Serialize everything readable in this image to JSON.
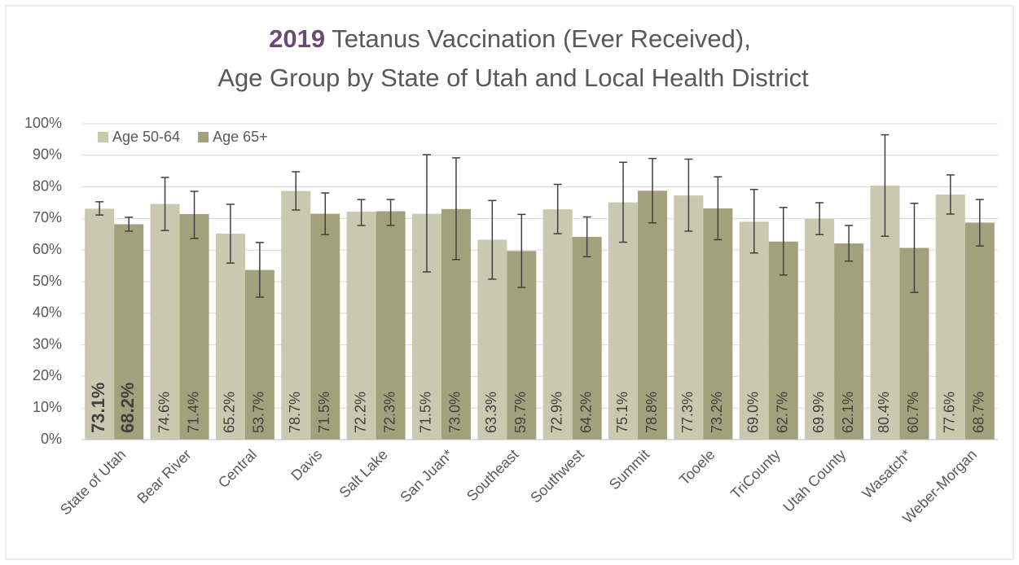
{
  "chart_data": {
    "type": "bar",
    "title_highlight": "2019",
    "title": "Tetanus Vaccination (Ever Received),",
    "subtitle": "Age Group by State of Utah and Local Health District",
    "categories": [
      "State of Utah",
      "Bear River",
      "Central",
      "Davis",
      "Salt Lake",
      "San Juan*",
      "Southeast",
      "Southwest",
      "Summit",
      "Tooele",
      "TriCounty",
      "Utah County",
      "Wasatch*",
      "Weber-Morgan"
    ],
    "series": [
      {
        "name": "Age 50-64",
        "color": "#c9c9b0",
        "values": [
          73.1,
          74.6,
          65.2,
          78.7,
          72.2,
          71.5,
          63.3,
          72.9,
          75.1,
          77.3,
          69.0,
          69.9,
          80.4,
          77.6
        ],
        "value_labels": [
          "73.1%",
          "74.6%",
          "65.2%",
          "78.7%",
          "72.2%",
          "71.5%",
          "63.3%",
          "72.9%",
          "75.1%",
          "77.3%",
          "69.0%",
          "69.9%",
          "80.4%",
          "77.6%"
        ],
        "ci_low": [
          71.1,
          66.2,
          55.9,
          72.7,
          67.8,
          53.1,
          50.8,
          65.2,
          62.5,
          66.0,
          59.1,
          64.9,
          64.4,
          71.4
        ],
        "ci_high": [
          75.3,
          83.0,
          74.5,
          84.8,
          76.0,
          90.2,
          75.7,
          80.8,
          87.8,
          88.8,
          79.2,
          75.0,
          96.5,
          83.8
        ]
      },
      {
        "name": "Age 65+",
        "color": "#a3a17c",
        "values": [
          68.2,
          71.4,
          53.7,
          71.5,
          72.3,
          73.0,
          59.7,
          64.2,
          78.8,
          73.2,
          62.7,
          62.1,
          60.7,
          68.7
        ],
        "value_labels": [
          "68.2%",
          "71.4%",
          "53.7%",
          "71.5%",
          "72.3%",
          "73.0%",
          "59.7%",
          "64.2%",
          "78.8%",
          "73.2%",
          "62.7%",
          "62.1%",
          "60.7%",
          "68.7%"
        ],
        "ci_low": [
          66.0,
          63.7,
          45.1,
          64.9,
          67.8,
          57.0,
          48.2,
          57.9,
          68.6,
          63.3,
          52.1,
          56.5,
          46.6,
          61.3
        ],
        "ci_high": [
          70.4,
          78.6,
          62.4,
          78.1,
          76.0,
          89.2,
          71.3,
          70.5,
          89.0,
          83.2,
          73.5,
          67.8,
          74.8,
          76.0
        ]
      }
    ],
    "ylim": [
      0,
      100
    ],
    "yticks": [
      {
        "value": 0,
        "label": "0%"
      },
      {
        "value": 10,
        "label": "10%"
      },
      {
        "value": 20,
        "label": "20%"
      },
      {
        "value": 30,
        "label": "30%"
      },
      {
        "value": 40,
        "label": "40%"
      },
      {
        "value": 50,
        "label": "50%"
      },
      {
        "value": 60,
        "label": "60%"
      },
      {
        "value": 70,
        "label": "70%"
      },
      {
        "value": 80,
        "label": "80%"
      },
      {
        "value": 90,
        "label": "90%"
      },
      {
        "value": 100,
        "label": "100%"
      }
    ],
    "grid": true,
    "legend": "upper left"
  }
}
